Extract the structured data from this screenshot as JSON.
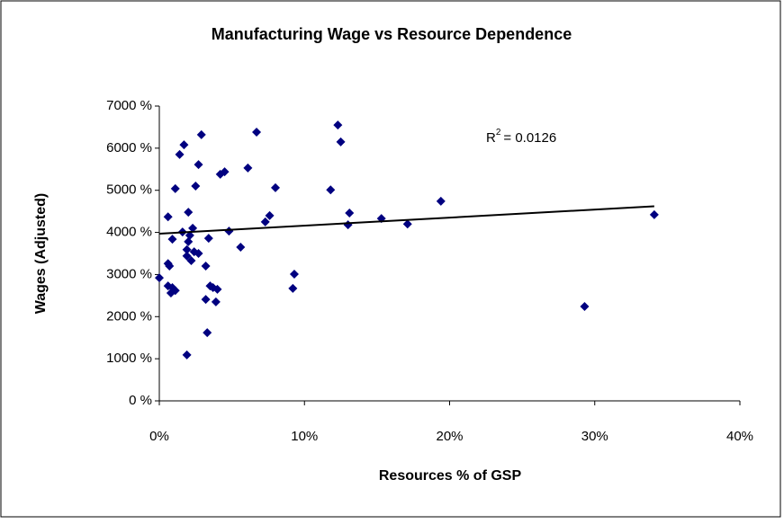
{
  "chart_data": {
    "type": "scatter",
    "title": "Manufacturing Wage vs Resource Dependence",
    "x_label": "Resources % of GSP",
    "y_label": "Wages (Adjusted)",
    "r2_parts": [
      "R",
      "2",
      "= 0.0126"
    ],
    "series": [
      {
        "color": "#000080",
        "x": [
          0,
          0.6,
          0.6,
          0.7,
          0.6,
          0.8,
          0.9,
          0.9,
          1.1,
          1.1,
          1.4,
          1.7,
          1.6,
          1.9,
          1.9,
          1.9,
          2.0,
          2.0,
          2.1,
          2.2,
          2.3,
          2.4,
          2.5,
          2.7,
          2.9,
          2.7,
          3.2,
          3.2,
          3.3,
          3.4,
          3.5,
          3.7,
          3.9,
          4.0,
          4.2,
          4.5,
          4.8,
          5.6,
          6.1,
          6.7,
          7.3,
          7.6,
          8.0,
          9.2,
          9.3,
          11.8,
          12.3,
          12.5,
          13.0,
          13.1,
          15.3,
          17.1,
          19.4,
          29.3,
          34.1
        ],
        "values": [
          2920,
          4370,
          3260,
          3200,
          2730,
          2560,
          3840,
          2690,
          5040,
          2620,
          5850,
          6080,
          4010,
          1090,
          3440,
          3590,
          4480,
          3780,
          3930,
          3330,
          4100,
          3540,
          5100,
          5610,
          6320,
          3500,
          3200,
          2410,
          1620,
          3860,
          2730,
          2690,
          2350,
          2650,
          5380,
          5440,
          4030,
          3650,
          5530,
          6380,
          4250,
          4400,
          5060,
          2670,
          3010,
          5010,
          6550,
          6150,
          4180,
          4460,
          4330,
          4200,
          4740,
          2240,
          4420
        ]
      }
    ],
    "trendline": {
      "color": "#000000",
      "x": [
        0,
        34.1
      ],
      "values": [
        3970,
        4620
      ]
    },
    "xlim": [
      0,
      40
    ],
    "xticks": [
      {
        "value": 0,
        "label": "0%"
      },
      {
        "value": 10,
        "label": "10%"
      },
      {
        "value": 20,
        "label": "20%"
      },
      {
        "value": 30,
        "label": "30%"
      },
      {
        "value": 40,
        "label": "40%"
      }
    ],
    "ylim": [
      0,
      7000
    ],
    "yticks": [
      {
        "value": 0,
        "label": "0 %"
      },
      {
        "value": 1000,
        "label": "1000 %"
      },
      {
        "value": 2000,
        "label": "2000 %"
      },
      {
        "value": 3000,
        "label": "3000 %"
      },
      {
        "value": 4000,
        "label": "4000 %"
      },
      {
        "value": 5000,
        "label": "5000 %"
      },
      {
        "value": 6000,
        "label": "6000 %"
      },
      {
        "value": 7000,
        "label": "7000 %"
      }
    ],
    "grid": false
  }
}
